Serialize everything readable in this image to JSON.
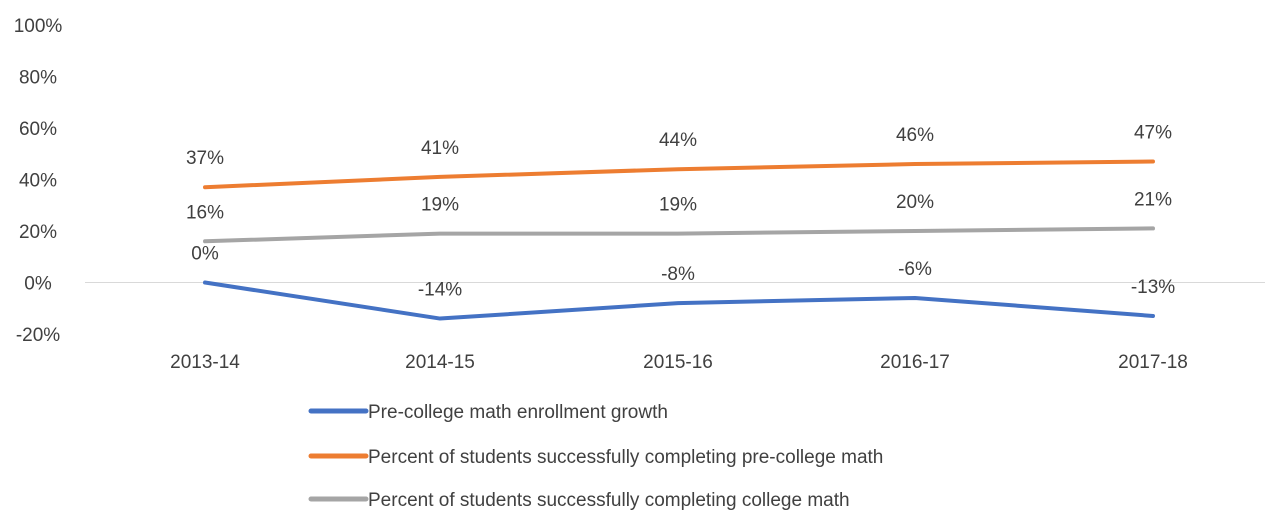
{
  "chart_data": {
    "type": "line",
    "categories": [
      "2013-14",
      "2014-15",
      "2015-16",
      "2016-17",
      "2017-18"
    ],
    "series": [
      {
        "name": "Pre-college math enrollment growth",
        "values": [
          0,
          -14,
          -8,
          -6,
          -13
        ],
        "labels": [
          "0%",
          "-14%",
          "-8%",
          "-6%",
          "-13%"
        ],
        "color": "#4472C4"
      },
      {
        "name": "Percent of students successfully completing pre-college math",
        "values": [
          37,
          41,
          44,
          46,
          47
        ],
        "labels": [
          "37%",
          "41%",
          "44%",
          "46%",
          "47%"
        ],
        "color": "#ED7D31"
      },
      {
        "name": "Percent of students successfully completing college math",
        "values": [
          16,
          19,
          19,
          20,
          21
        ],
        "labels": [
          "16%",
          "19%",
          "19%",
          "20%",
          "21%"
        ],
        "color": "#A5A5A5"
      }
    ],
    "ylim": [
      -20,
      100
    ],
    "y_ticks": [
      100,
      80,
      60,
      40,
      20,
      0,
      -20
    ],
    "y_tick_labels": [
      "100%",
      "80%",
      "60%",
      "40%",
      "20%",
      "0%",
      "-20%"
    ],
    "grid": false,
    "zero_line": true,
    "legend_position": "bottom"
  }
}
